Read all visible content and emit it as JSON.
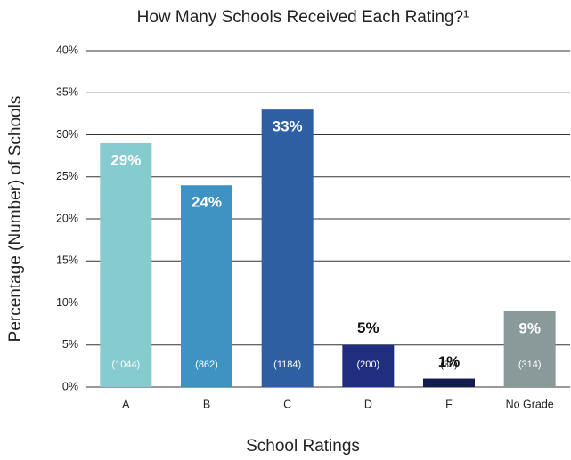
{
  "chart_data": {
    "type": "bar",
    "title": "How Many Schools Received Each Rating?¹",
    "x_label": "School Ratings",
    "y_label": "Percentage (Number) of Schools",
    "categories": [
      "A",
      "B",
      "C",
      "D",
      "F",
      "No Grade"
    ],
    "values": [
      29,
      24,
      33,
      5,
      1,
      9
    ],
    "value_labels": [
      "29%",
      "24%",
      "33%",
      "5%",
      "1%",
      "9%"
    ],
    "count_labels": [
      "(1044)",
      "(862)",
      "(1184)",
      "(200)",
      "(36)",
      "(314)"
    ],
    "colors": [
      "#85cbcf",
      "#3f93c3",
      "#2e5fa3",
      "#1f2e7e",
      "#121b4f",
      "#8a9a9b"
    ],
    "ylim": [
      0,
      40
    ],
    "yticks": [
      {
        "value": 0,
        "label": "0%"
      },
      {
        "value": 5,
        "label": "5%"
      },
      {
        "value": 10,
        "label": "10%"
      },
      {
        "value": 15,
        "label": "15%"
      },
      {
        "value": 20,
        "label": "20%"
      },
      {
        "value": 25,
        "label": "25%"
      },
      {
        "value": 30,
        "label": "30%"
      },
      {
        "value": 35,
        "label": "35%"
      },
      {
        "value": 40,
        "label": "40%"
      }
    ],
    "grid": true
  }
}
